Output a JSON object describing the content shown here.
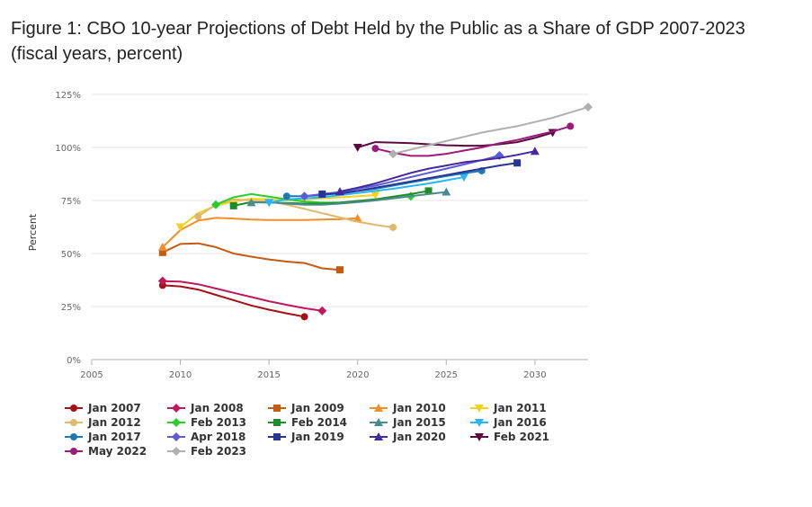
{
  "figure": {
    "title_line1": "Figure 1: CBO 10-year Projections of Debt Held by the Public as a Share of GDP 2007-2023",
    "title_line2": "(fiscal years, percent)"
  },
  "chart_data": {
    "type": "line",
    "title": "Figure 1: CBO 10-year Projections of Debt Held by the Public as a Share of GDP 2007-2023 (fiscal years, percent)",
    "xlabel": "",
    "ylabel": "Percent",
    "xlim": [
      2005,
      2033
    ],
    "ylim": [
      0,
      125
    ],
    "x_ticks": [
      2005,
      2010,
      2015,
      2020,
      2025,
      2030
    ],
    "y_ticks": [
      0,
      25,
      50,
      75,
      100,
      125
    ],
    "y_tick_labels": [
      "0%",
      "25%",
      "50%",
      "75%",
      "100%",
      "125%"
    ],
    "grid": true,
    "legend_position": "bottom",
    "series": [
      {
        "name": "Jan 2007",
        "color": "#a50f15",
        "marker": "circle",
        "x": [
          2009,
          2010,
          2011,
          2012,
          2013,
          2014,
          2015,
          2016,
          2017
        ],
        "y": [
          35,
          34.5,
          33,
          30.5,
          28,
          25.5,
          23.5,
          21.8,
          20.2
        ]
      },
      {
        "name": "Jan 2008",
        "color": "#c2185b",
        "marker": "diamond",
        "x": [
          2009,
          2010,
          2011,
          2012,
          2013,
          2014,
          2015,
          2016,
          2017,
          2018
        ],
        "y": [
          37,
          36.8,
          35.5,
          33.5,
          31.5,
          29.5,
          27.5,
          25.8,
          24.2,
          23
        ]
      },
      {
        "name": "Jan 2009",
        "color": "#c55a11",
        "marker": "square",
        "x": [
          2009,
          2010,
          2011,
          2012,
          2013,
          2014,
          2015,
          2016,
          2017,
          2018,
          2019
        ],
        "y": [
          50.5,
          54.5,
          54.8,
          53,
          50,
          48.5,
          47.2,
          46.2,
          45.5,
          43,
          42.3
        ]
      },
      {
        "name": "Jan 2010",
        "color": "#f28e2b",
        "marker": "triangle-up",
        "x": [
          2009,
          2010,
          2011,
          2012,
          2013,
          2014,
          2015,
          2016,
          2017,
          2018,
          2019,
          2020
        ],
        "y": [
          53,
          61,
          65.5,
          66.8,
          66.5,
          66,
          65.8,
          65.8,
          65.8,
          66,
          66.2,
          66.6
        ]
      },
      {
        "name": "Jan 2011",
        "color": "#f2d21b",
        "marker": "triangle-down",
        "x": [
          2010,
          2011,
          2012,
          2013,
          2014,
          2015,
          2016,
          2017,
          2018,
          2019,
          2020,
          2021
        ],
        "y": [
          62.5,
          69,
          72.5,
          74.5,
          75.8,
          75.5,
          75,
          75.5,
          76,
          76.5,
          77,
          77.5
        ]
      },
      {
        "name": "Jan 2012",
        "color": "#e0b86a",
        "marker": "circle",
        "x": [
          2011,
          2012,
          2013,
          2014,
          2015,
          2016,
          2017,
          2018,
          2019,
          2020,
          2021,
          2022
        ],
        "y": [
          67.5,
          73,
          75.5,
          75,
          74.5,
          73,
          71,
          69,
          67,
          65,
          63.5,
          62.3
        ]
      },
      {
        "name": "Feb 2013",
        "color": "#2bcc2b",
        "marker": "diamond",
        "x": [
          2012,
          2013,
          2014,
          2015,
          2016,
          2017,
          2018,
          2019,
          2020,
          2021,
          2022,
          2023
        ],
        "y": [
          73,
          76.5,
          78,
          76.8,
          75.5,
          74.5,
          74,
          74,
          74.5,
          75.2,
          76,
          77
        ]
      },
      {
        "name": "Feb 2014",
        "color": "#1e8c2a",
        "marker": "square",
        "x": [
          2013,
          2014,
          2015,
          2016,
          2017,
          2018,
          2019,
          2020,
          2021,
          2022,
          2023,
          2024
        ],
        "y": [
          72.5,
          74.2,
          74,
          73.8,
          73.5,
          73.5,
          74,
          74.8,
          75.5,
          76.8,
          78,
          79.5
        ]
      },
      {
        "name": "Jan 2015",
        "color": "#4a8c8c",
        "marker": "triangle-up",
        "x": [
          2014,
          2015,
          2016,
          2017,
          2018,
          2019,
          2020,
          2021,
          2022,
          2023,
          2024,
          2025
        ],
        "y": [
          74,
          74.2,
          73.5,
          73,
          73,
          73.5,
          74.2,
          75,
          76,
          77,
          78,
          79
        ]
      },
      {
        "name": "Jan 2016",
        "color": "#29b6f6",
        "marker": "triangle-down",
        "x": [
          2015,
          2016,
          2017,
          2018,
          2019,
          2020,
          2021,
          2022,
          2023,
          2024,
          2025,
          2026
        ],
        "y": [
          74,
          75.5,
          76,
          76.5,
          77.5,
          78.5,
          79.5,
          80.5,
          81.8,
          83,
          84.5,
          86
        ]
      },
      {
        "name": "Jan 2017",
        "color": "#1f77b4",
        "marker": "circle",
        "x": [
          2016,
          2017,
          2018,
          2019,
          2020,
          2021,
          2022,
          2023,
          2024,
          2025,
          2026,
          2027
        ],
        "y": [
          77,
          77,
          77.5,
          78.5,
          79.5,
          80.5,
          82,
          83.5,
          85,
          86.5,
          87.8,
          89
        ]
      },
      {
        "name": "Apr 2018",
        "color": "#5b5bd6",
        "marker": "diamond",
        "x": [
          2017,
          2018,
          2019,
          2020,
          2021,
          2022,
          2023,
          2024,
          2025,
          2026,
          2027,
          2028
        ],
        "y": [
          77,
          78,
          79,
          80.5,
          82,
          84,
          86,
          88,
          90,
          92,
          94,
          96.2
        ]
      },
      {
        "name": "Jan 2019",
        "color": "#283593",
        "marker": "square",
        "x": [
          2018,
          2019,
          2020,
          2021,
          2022,
          2023,
          2024,
          2025,
          2026,
          2027,
          2028,
          2029
        ],
        "y": [
          78,
          78.2,
          79.5,
          81,
          82.5,
          84,
          85.5,
          87,
          88.5,
          90,
          91.5,
          92.7
        ]
      },
      {
        "name": "Jan 2020",
        "color": "#4527a0",
        "marker": "triangle-up",
        "x": [
          2019,
          2020,
          2021,
          2022,
          2023,
          2024,
          2025,
          2026,
          2027,
          2028,
          2029,
          2030
        ],
        "y": [
          79.2,
          81,
          83,
          85.5,
          88,
          90,
          91.5,
          93,
          94,
          95,
          96.5,
          98.2
        ]
      },
      {
        "name": "Feb 2021",
        "color": "#5c0a3d",
        "marker": "triangle-down",
        "x": [
          2020,
          2021,
          2022,
          2023,
          2024,
          2025,
          2026,
          2027,
          2028,
          2029,
          2030,
          2031
        ],
        "y": [
          100,
          102.5,
          102.3,
          102,
          101.5,
          101,
          100.8,
          100.8,
          101.5,
          102.5,
          104.5,
          107
        ]
      },
      {
        "name": "May 2022",
        "color": "#9c1a7a",
        "marker": "circle",
        "x": [
          2021,
          2022,
          2023,
          2024,
          2025,
          2026,
          2027,
          2028,
          2029,
          2030,
          2031,
          2032
        ],
        "y": [
          99.5,
          97.5,
          96,
          96,
          97,
          98.5,
          100,
          102,
          103.5,
          105.5,
          107.5,
          110
        ]
      },
      {
        "name": "Feb 2023",
        "color": "#b0b0b0",
        "marker": "diamond",
        "x": [
          2022,
          2023,
          2024,
          2025,
          2026,
          2027,
          2028,
          2029,
          2030,
          2031,
          2032,
          2033
        ],
        "y": [
          97,
          99,
          101,
          103,
          105,
          107,
          108.5,
          110,
          112,
          114,
          116.5,
          119
        ]
      }
    ]
  }
}
